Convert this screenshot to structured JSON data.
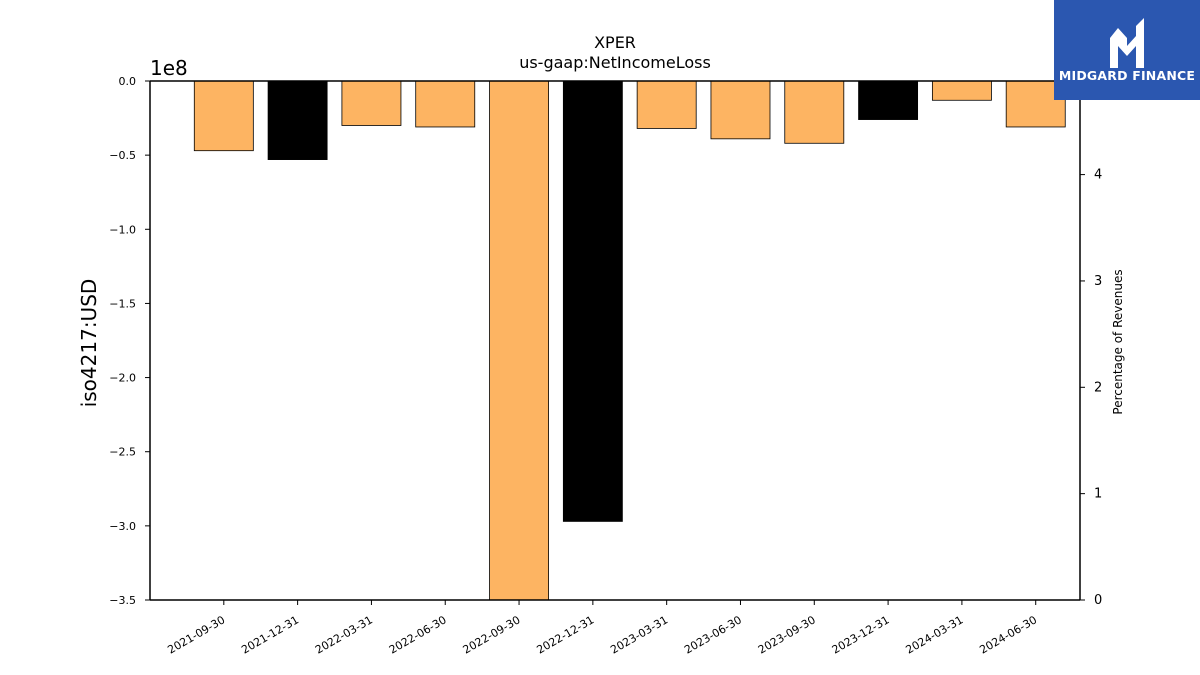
{
  "brand": {
    "name": "MIDGARD FINANCE",
    "bg_color": "#2b57b0",
    "icon": "midgard-logo-icon"
  },
  "chart_data": {
    "type": "bar",
    "title": "XPER",
    "subtitle": "us-gaap:NetIncomeLoss",
    "ylabel": "iso4217:USD",
    "y_offset_label": "1e8",
    "y2label": "Percentage of Revenues",
    "ylim": [
      -3.5,
      0
    ],
    "y_unit_multiplier": 100000000,
    "yticks": [
      "0.0",
      "−0.5",
      "−1.0",
      "−1.5",
      "−2.0",
      "−2.5",
      "−3.0",
      "−3.5"
    ],
    "y2lim": [
      0,
      4.88
    ],
    "y2ticks": [
      "0",
      "1",
      "2",
      "3",
      "4"
    ],
    "categories": [
      "2021-09-30",
      "2021-12-31",
      "2022-03-31",
      "2022-06-30",
      "2022-09-30",
      "2022-12-31",
      "2023-03-31",
      "2023-06-30",
      "2023-09-30",
      "2023-12-31",
      "2024-03-31",
      "2024-06-30"
    ],
    "values": [
      -0.47,
      -0.53,
      -0.3,
      -0.31,
      -3.5,
      -2.97,
      -0.32,
      -0.39,
      -0.42,
      -0.26,
      -0.13,
      -0.31
    ],
    "bar_colors": [
      "#fdb462",
      "#000000",
      "#fdb462",
      "#fdb462",
      "#fdb462",
      "#000000",
      "#fdb462",
      "#fdb462",
      "#fdb462",
      "#000000",
      "#fdb462",
      "#fdb462"
    ],
    "grid": false,
    "legend": "none"
  }
}
